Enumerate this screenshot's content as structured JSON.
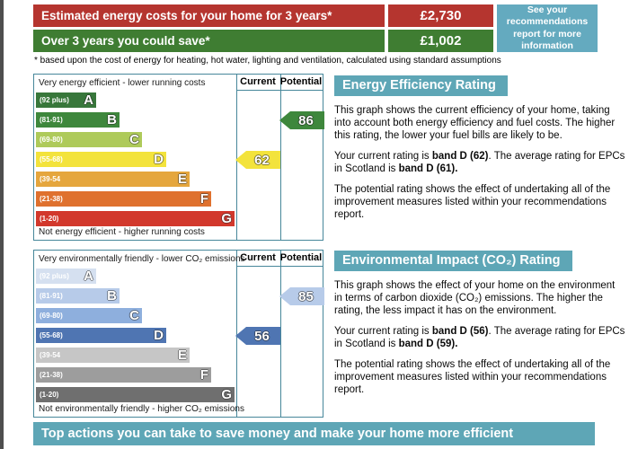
{
  "summary": {
    "cost_label": "Estimated energy costs for your home for 3 years*",
    "cost_value": "£2,730",
    "save_label": "Over 3 years you could save*",
    "save_value": "£1,002",
    "note": "See your recommendations report for more information",
    "footnote": "* based upon the cost of energy for heating, hot water, lighting and ventilation, calculated using standard assumptions"
  },
  "colors": {
    "cost_row": "#b5352f",
    "save_row": "#3f7d32",
    "note_box": "#64aabf",
    "header_teal": "#5ea6b6",
    "chart_border": "#47879a"
  },
  "eer_chart": {
    "top_label": "Very energy efficient - lower running costs",
    "bottom_label": "Not energy efficient - higher running costs",
    "columns": {
      "current": "Current",
      "potential": "Potential"
    },
    "bands": [
      {
        "letter": "A",
        "range": "(92 plus)",
        "color": "#38773b"
      },
      {
        "letter": "B",
        "range": "(81-91)",
        "color": "#3e873c"
      },
      {
        "letter": "C",
        "range": "(69-80)",
        "color": "#aeca5a"
      },
      {
        "letter": "D",
        "range": "(55-68)",
        "color": "#f3e33c"
      },
      {
        "letter": "E",
        "range": "(39-54",
        "color": "#e5a63d"
      },
      {
        "letter": "F",
        "range": "(21-38)",
        "color": "#df712e"
      },
      {
        "letter": "G",
        "range": "(1-20)",
        "color": "#d2382c"
      }
    ],
    "current": {
      "value": "62",
      "band_index": 3,
      "color": "#f3e33c"
    },
    "potential": {
      "value": "86",
      "band_index": 1,
      "color": "#3e873c"
    }
  },
  "co2_chart": {
    "top_label": "Very environmentally friendly - lower CO₂ emissions",
    "bottom_label": "Not environmentally friendly - higher CO₂ emissions",
    "columns": {
      "current": "Current",
      "potential": "Potential"
    },
    "bands": [
      {
        "letter": "A",
        "range": "(92 plus)",
        "color": "#d5e0f0"
      },
      {
        "letter": "B",
        "range": "(81-91)",
        "color": "#b7cbe9"
      },
      {
        "letter": "C",
        "range": "(69-80)",
        "color": "#8eafdd"
      },
      {
        "letter": "D",
        "range": "(55-68)",
        "color": "#4f75b2"
      },
      {
        "letter": "E",
        "range": "(39-54",
        "color": "#c6c6c6"
      },
      {
        "letter": "F",
        "range": "(21-38)",
        "color": "#9d9d9d"
      },
      {
        "letter": "G",
        "range": "(1-20)",
        "color": "#6f6f6f"
      }
    ],
    "current": {
      "value": "56",
      "band_index": 3,
      "color": "#4f75b2"
    },
    "potential": {
      "value": "85",
      "band_index": 1,
      "color": "#b7cbe9"
    }
  },
  "eer_panel": {
    "title": "Energy Efficiency Rating",
    "p1": "This graph shows the current efficiency of your home, taking into account both energy efficiency and fuel costs. The higher this rating, the lower your fuel bills are likely to be.",
    "rating_pre": "Your current rating is ",
    "rating_current": "band D (62)",
    "rating_mid": ". The average rating for EPCs in Scotland is ",
    "rating_avg": "band D (61).",
    "p3": "The potential rating shows the effect of undertaking all of the improvement measures listed within your recommendations report."
  },
  "co2_panel": {
    "title": "Environmental Impact (CO₂) Rating",
    "p1": "This graph shows the effect of your home on the environment in terms of carbon dioxide (CO₂) emissions. The higher the rating, the less impact it has on the environment.",
    "rating_pre": "Your current rating is ",
    "rating_current": "band D (56)",
    "rating_mid": ". The average rating for EPCs in Scotland is ",
    "rating_avg": "band D (59).",
    "p3": "The potential rating shows the effect of undertaking all of the improvement measures listed within your recommendations report."
  },
  "banner": "Top actions you can take to save money and make your home more efficient"
}
